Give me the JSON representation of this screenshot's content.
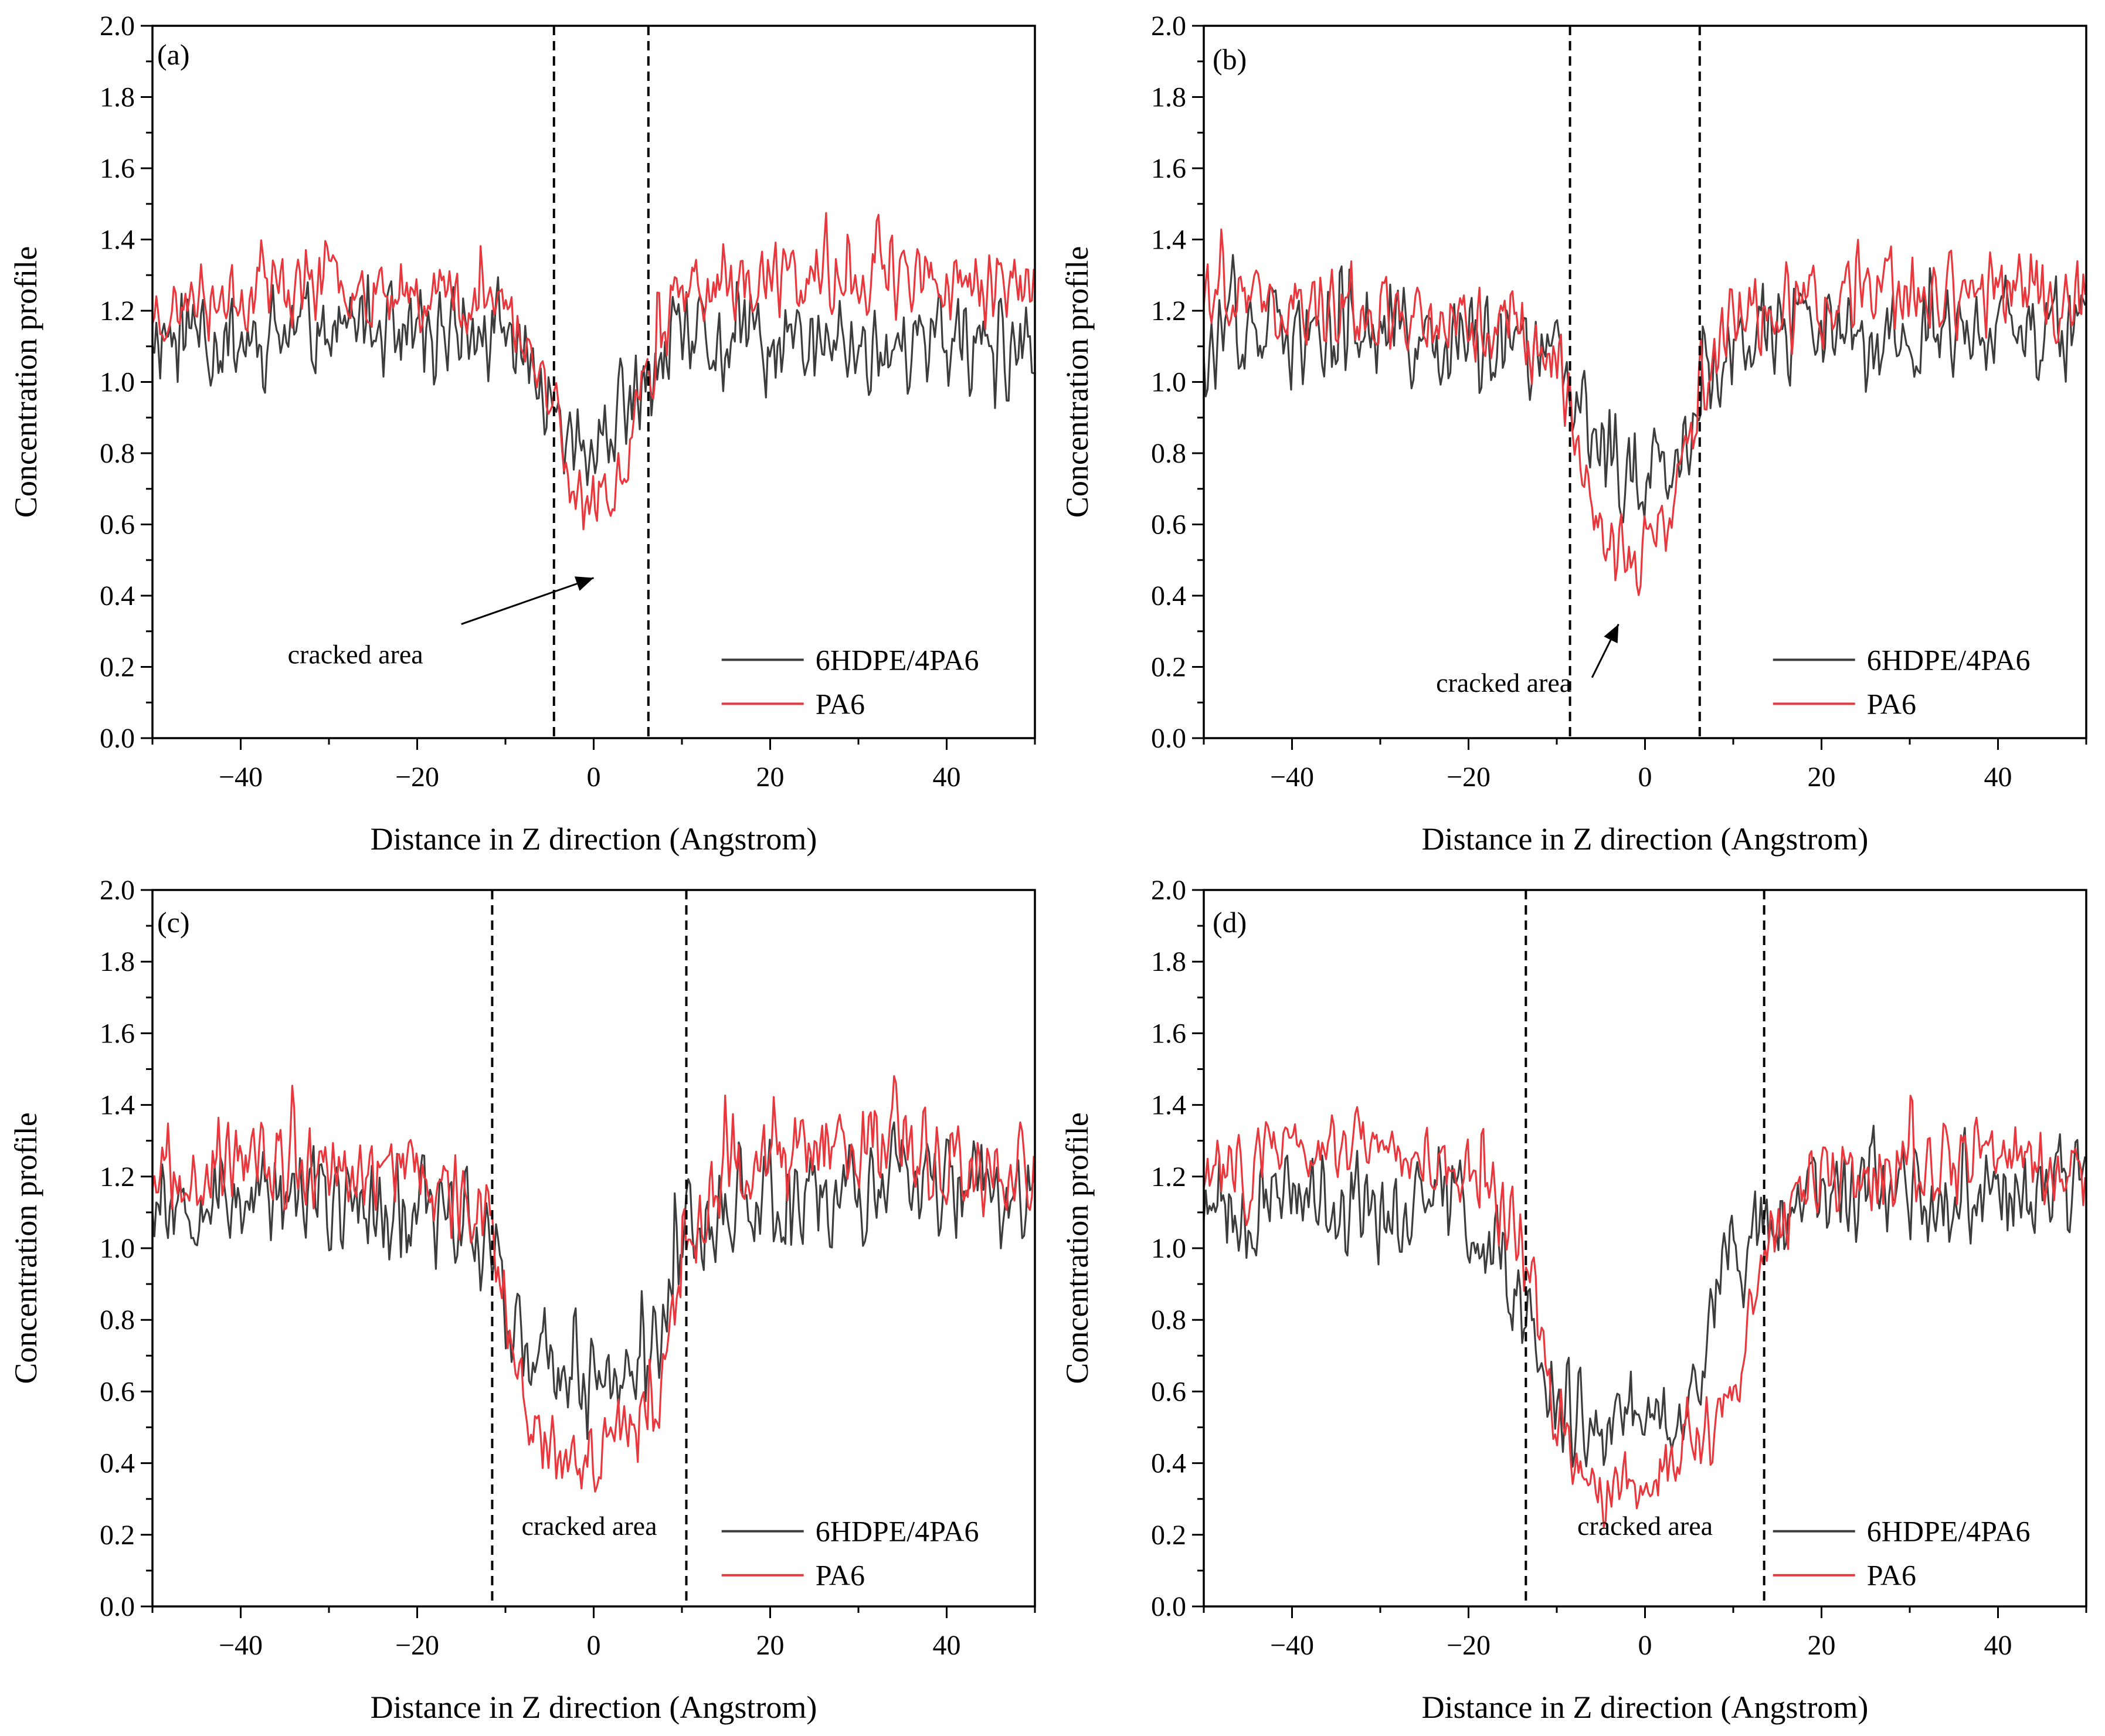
{
  "figure": {
    "shared": {
      "xlabel": "Distance in Z direction (Angstrom)",
      "ylabel": "Concentration profile",
      "xlim": [
        -50,
        50
      ],
      "ylim": [
        0,
        2.0
      ],
      "xticks": [
        -40,
        -20,
        0,
        20,
        40
      ],
      "xtick_labels": [
        "−40",
        "−20",
        "0",
        "20",
        "40"
      ],
      "yticks": [
        0,
        0.2,
        0.4,
        0.6,
        0.8,
        1.0,
        1.2,
        1.4,
        1.6,
        1.8,
        2.0
      ],
      "ytick_labels": [
        "0.0",
        "0.2",
        "0.4",
        "0.6",
        "0.8",
        "1.0",
        "1.2",
        "1.4",
        "1.6",
        "1.8",
        "2.0"
      ],
      "legend": [
        {
          "name": "6HDPE/4PA6",
          "color": "#3d3d3d"
        },
        {
          "name": "PA6",
          "color": "#e8383d"
        }
      ],
      "annotation": "cracked area"
    }
  },
  "chart_data": [
    {
      "type": "line",
      "panel": "(a)",
      "xlim": [
        -50,
        50
      ],
      "ylim": [
        0,
        2.0
      ],
      "crack_bounds": [
        -4.5,
        6.2
      ],
      "annotation": "cracked area",
      "arrow": true,
      "series": [
        {
          "name": "6HDPE/4PA6",
          "color": "#3d3d3d",
          "x": [
            -50,
            -40,
            -30,
            -20,
            -10,
            -4.5,
            -2,
            0,
            2,
            4,
            6.2,
            10,
            20,
            30,
            40,
            50
          ],
          "values": [
            1.15,
            1.12,
            1.15,
            1.13,
            1.12,
            0.95,
            0.82,
            0.78,
            0.82,
            0.9,
            1.0,
            1.1,
            1.1,
            1.1,
            1.1,
            1.08
          ],
          "noise": 0.17,
          "seed": 11
        },
        {
          "name": "PA6",
          "color": "#e8383d",
          "x": [
            -50,
            -40,
            -30,
            -20,
            -10,
            -4.5,
            -2,
            0,
            2,
            4,
            6.2,
            10,
            20,
            30,
            40,
            50
          ],
          "values": [
            1.2,
            1.25,
            1.28,
            1.26,
            1.22,
            0.95,
            0.7,
            0.62,
            0.7,
            0.85,
            1.05,
            1.25,
            1.28,
            1.3,
            1.28,
            1.25
          ],
          "noise": 0.13,
          "seed": 23
        }
      ]
    },
    {
      "type": "line",
      "panel": "(b)",
      "xlim": [
        -50,
        50
      ],
      "ylim": [
        0,
        2.0
      ],
      "crack_bounds": [
        -8.5,
        6.2
      ],
      "annotation": "cracked area",
      "arrow": true,
      "series": [
        {
          "name": "6HDPE/4PA6",
          "color": "#3d3d3d",
          "x": [
            -50,
            -40,
            -30,
            -20,
            -10,
            -8.5,
            -4,
            0,
            3,
            6.2,
            10,
            20,
            30,
            40,
            50
          ],
          "values": [
            1.12,
            1.12,
            1.12,
            1.1,
            1.05,
            0.95,
            0.78,
            0.72,
            0.78,
            0.95,
            1.1,
            1.12,
            1.12,
            1.15,
            1.15
          ],
          "noise": 0.17,
          "seed": 37
        },
        {
          "name": "PA6",
          "color": "#e8383d",
          "x": [
            -50,
            -40,
            -30,
            -20,
            -10,
            -8.5,
            -4,
            0,
            3,
            6.2,
            10,
            20,
            30,
            40,
            50
          ],
          "values": [
            1.25,
            1.22,
            1.2,
            1.18,
            1.1,
            0.92,
            0.55,
            0.5,
            0.65,
            0.9,
            1.2,
            1.22,
            1.25,
            1.25,
            1.22
          ],
          "noise": 0.14,
          "seed": 41
        }
      ]
    },
    {
      "type": "line",
      "panel": "(c)",
      "xlim": [
        -50,
        50
      ],
      "ylim": [
        0,
        2.0
      ],
      "crack_bounds": [
        -11.5,
        10.5
      ],
      "annotation": "cracked area",
      "arrow": false,
      "series": [
        {
          "name": "6HDPE/4PA6",
          "color": "#3d3d3d",
          "x": [
            -50,
            -40,
            -30,
            -20,
            -12,
            -8,
            -4,
            0,
            4,
            8,
            10.5,
            15,
            25,
            35,
            50
          ],
          "values": [
            1.15,
            1.15,
            1.12,
            1.12,
            1.05,
            0.7,
            0.62,
            0.6,
            0.65,
            0.8,
            1.05,
            1.12,
            1.15,
            1.18,
            1.15
          ],
          "noise": 0.18,
          "seed": 53
        },
        {
          "name": "PA6",
          "color": "#e8383d",
          "x": [
            -50,
            -40,
            -30,
            -20,
            -12,
            -8,
            -4,
            0,
            4,
            8,
            10.5,
            15,
            25,
            35,
            50
          ],
          "values": [
            1.2,
            1.25,
            1.22,
            1.2,
            1.12,
            0.6,
            0.4,
            0.45,
            0.5,
            0.62,
            1.0,
            1.2,
            1.25,
            1.28,
            1.22
          ],
          "noise": 0.14,
          "seed": 67
        }
      ]
    },
    {
      "type": "line",
      "panel": "(d)",
      "xlim": [
        -50,
        50
      ],
      "ylim": [
        0,
        2.0
      ],
      "crack_bounds": [
        -13.5,
        13.5
      ],
      "annotation": "cracked area",
      "arrow": false,
      "series": [
        {
          "name": "6HDPE/4PA6",
          "color": "#3d3d3d",
          "x": [
            -50,
            -40,
            -30,
            -20,
            -14,
            -10,
            -5,
            0,
            5,
            8,
            13.5,
            20,
            30,
            40,
            50
          ],
          "values": [
            1.12,
            1.12,
            1.1,
            1.08,
            0.9,
            0.55,
            0.5,
            0.52,
            0.55,
            0.85,
            1.05,
            1.12,
            1.15,
            1.15,
            1.15
          ],
          "noise": 0.17,
          "seed": 79
        },
        {
          "name": "PA6",
          "color": "#e8383d",
          "x": [
            -50,
            -40,
            -30,
            -20,
            -14,
            -10,
            -5,
            0,
            5,
            10,
            13.5,
            20,
            30,
            40,
            50
          ],
          "values": [
            1.2,
            1.28,
            1.3,
            1.22,
            1.05,
            0.5,
            0.32,
            0.35,
            0.45,
            0.55,
            1.0,
            1.2,
            1.22,
            1.25,
            1.2
          ],
          "noise": 0.13,
          "seed": 83
        }
      ]
    }
  ]
}
